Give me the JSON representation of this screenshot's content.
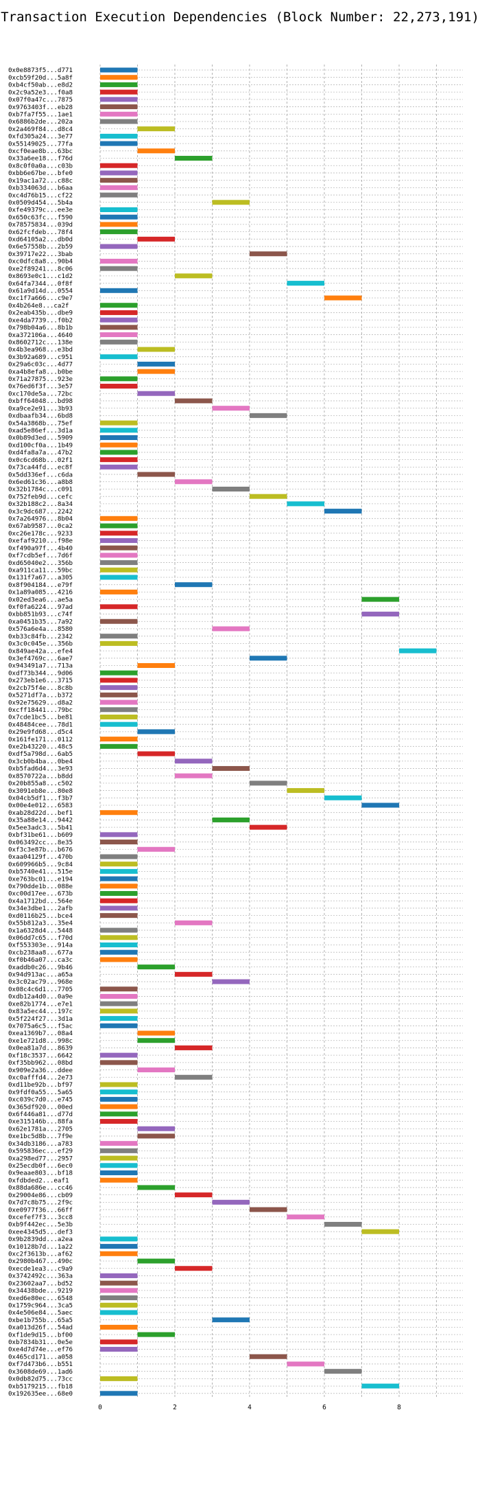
{
  "chart_data": {
    "type": "bar",
    "orientation": "horizontal",
    "title": "Transaction Execution Dependencies (Block Number: 22,273,191)",
    "xlabel": "",
    "ylabel": "",
    "xlim": [
      0,
      9
    ],
    "x_ticks": [
      0,
      2,
      4,
      6,
      8
    ],
    "grid": true,
    "bar_width": 1,
    "palette": [
      "#1f77b4",
      "#ff7f0e",
      "#2ca02c",
      "#d62728",
      "#9467bd",
      "#8c564b",
      "#e377c2",
      "#7f7f7f",
      "#bcbd22",
      "#17becf"
    ],
    "transactions": [
      "0x0e8873f5...d771",
      "0xcb59f20d...5a8f",
      "0xb4cf50ab...e8d2",
      "0x2c9a52e3...f0a8",
      "0x07f0a47c...7875",
      "0x9763403f...eb28",
      "0xb7fa7f55...1ae1",
      "0x6886b2de...202a",
      "0x2a469f84...d8c4",
      "0xfd305a24...3e77",
      "0x55149025...77fa",
      "0xcf0eae8b...63bc",
      "0x33a6ee18...f76d",
      "0x8c0f0a0a...c03b",
      "0xbb6e67be...bfe0",
      "0x19ac1a72...c88c",
      "0xb334063d...b6aa",
      "0xc4d76b15...cf22",
      "0x0509d454...5b4a",
      "0xfe49379c...ee3e",
      "0x650c63fc...f590",
      "0x78575834...039d",
      "0x62fcfdeb...78f4",
      "0xd64105a2...db0d",
      "0x6e57558b...2b59",
      "0x39717e22...3bab",
      "0xc0dfc8a8...90b4",
      "0xe2f89241...8c06",
      "0x8693e0c1...c1d2",
      "0x64fa7344...0f8f",
      "0x61a9d14d...0554",
      "0xc1f7a666...c9e7",
      "0x4b264e8...ca2f",
      "0x2eab435b...dbe9",
      "0xe4da7739...f0b2",
      "0x798b04a6...8b1b",
      "0xa372106a...4640",
      "0x8602712c...138e",
      "0x4b3ea968...e3bd",
      "0x3b92a689...c951",
      "0x29a6c03c...4d77",
      "0xa4b8efa8...b0be",
      "0x71a27875...923e",
      "0x76ed6f3f...3e57",
      "0xc170de5a...72bc",
      "0xbff64048...bd98",
      "0xa9ce2e91...3b93",
      "0xdbaafb34...6bd8",
      "0x54a3868b...75ef",
      "0xad5e86ef...3d1a",
      "0x0b89d3ed...5909",
      "0xd100cf0a...1b49",
      "0xd4fa8a7a...47b2",
      "0x0c6cd68b...02f1",
      "0x73ca44fd...ec8f",
      "0x5dd336ef...c6da",
      "0x6ed61c36...a8b8",
      "0x32b1784c...c091",
      "0x752feb9d...cefc",
      "0x32b188c2...8a34",
      "0x3c9dc687...2242",
      "0x7a264976...8b04",
      "0x67ab9587...0ca2",
      "0xc26e178c...9233",
      "0xefaf9210...f98e",
      "0xf490a97f...4b40",
      "0xf7cdb5ef...7d6f",
      "0xd65040e2...356b",
      "0xa911ca11...59bc",
      "0x131f7a67...a305",
      "0x8f904184...e79f",
      "0x1a89a085...4216",
      "0x02ed3ea6...ae5a",
      "0xf0fa6224...97ad",
      "0xbb851b93...c74f",
      "0xa0451b35...7a92",
      "0x576a6e4a...8580",
      "0xb33c84fb...2342",
      "0x3c0c045e...356b",
      "0x849ae42a...efe4",
      "0x3ef4769c...6ae7",
      "0x943491a7...713a",
      "0xdf73b344...9d06",
      "0x273eb1e6...3715",
      "0x2cb75f4e...8c8b",
      "0x5271df7a...b372",
      "0x92e75629...d8a2",
      "0xcff18441...79bc",
      "0x7cde1bc5...be81",
      "0x48484cee...78d1",
      "0x29e9fd68...d5c4",
      "0x161fe171...0112",
      "0xe2b43220...48c5",
      "0xdf5a798d...6ab5",
      "0x3cb0b4ba...0be4",
      "0xb5fad6d4...3e93",
      "0x8570722a...b8dd",
      "0x20b855a8...c502",
      "0x3091eb8e...80e8",
      "0x04cb5df1...f3b7",
      "0x00e4e012...6583",
      "0xab28d22d...bef1",
      "0x35a88e14...9442",
      "0x5ee3adc3...5b41",
      "0xbf31be61...b609",
      "0x063492cc...8e35",
      "0xf3c3e87b...b676",
      "0xaa04129f...470b",
      "0x609966b5...9c84",
      "0xb5740e41...515e",
      "0xe763bc01...e194",
      "0x790dde1b...088e",
      "0xc00d17ee...673b",
      "0x4a1712bd...564e",
      "0x34e3dbe1...2afb",
      "0xd0116b25...bce4",
      "0x55b812a3...35e4",
      "0x1a6328d4...5448",
      "0x06dd7c65...f70d",
      "0xf553303e...914a",
      "0xcb238aa8...677a",
      "0xf0b46a07...ca3c",
      "0xaddb0c26...9b46",
      "0x94d913ac...a65a",
      "0x3c02ac79...968e",
      "0x08c4c6d1...7705",
      "0xdb12a4d0...0a9e",
      "0xe82b1774...e7e1",
      "0x83a5ec44...197c",
      "0x5f224f27...3d1a",
      "0x7075a6c5...f5ac",
      "0xea1369b7...08a4",
      "0xe1e721d8...998c",
      "0x0ea81a7d...8639",
      "0xf18c3537...6642",
      "0xf35bb962...08bd",
      "0x909e2a36...ddee",
      "0xc0afffd4...2e73",
      "0xd11be92b...bf97",
      "0x9fdf0a55...5a65",
      "0xc039c7d0...e745",
      "0x365df920...00ed",
      "0x6f446a81...d77d",
      "0xe315146b...88fa",
      "0x62e1781a...2705",
      "0xe1bc5d8b...7f9e",
      "0x34db3186...a783",
      "0x595836ec...ef29",
      "0xa298ed77...2957",
      "0x25ecdb0f...6ec0",
      "0x9eaae803...bf18",
      "0xfdbded2...eaf1",
      "0x88da686e...cc46",
      "0x29004e86...cb09",
      "0x7d7c8b75...2f9c",
      "0xe0977f36...66ff",
      "0xcefef7f3...3cc8",
      "0xb9f442ec...5e3b",
      "0xee4345d5...def3",
      "0x9b2839dd...a2ea",
      "0x10128b7d...1a22",
      "0xc2f3613b...af62",
      "0x2980b467...490c",
      "0xecde1ea3...c9a9",
      "0x3742492c...363a",
      "0x23602aa7...bd52",
      "0x34438bde...9219",
      "0xed6e80ec...6548",
      "0x1759c964...3ca5",
      "0x4e506e84...5aec",
      "0xbe1b755b...65a5",
      "0xa013d26f...54ad",
      "0xf1de9d15...bf00",
      "0xb7834b31...0e5e",
      "0xe4d7d74e...ef76",
      "0x465cd171...a058",
      "0xf7d473b6...b551",
      "0x3608de69...1ad6",
      "0x0db82d75...73cc",
      "0xb5179215...fb18",
      "0x192635ee...68e0"
    ],
    "starts": [
      0,
      0,
      0,
      0,
      0,
      0,
      0,
      0,
      1,
      0,
      0,
      1,
      2,
      0,
      0,
      0,
      0,
      0,
      3,
      0,
      0,
      0,
      0,
      1,
      0,
      4,
      0,
      0,
      2,
      5,
      0,
      6,
      0,
      0,
      0,
      0,
      0,
      0,
      1,
      0,
      1,
      1,
      0,
      0,
      1,
      2,
      3,
      4,
      0,
      0,
      0,
      0,
      0,
      0,
      0,
      1,
      2,
      3,
      4,
      5,
      6,
      0,
      0,
      0,
      0,
      0,
      0,
      0,
      0,
      0,
      2,
      0,
      7,
      0,
      7,
      0,
      3,
      0,
      0,
      8,
      4,
      1,
      0,
      0,
      0,
      0,
      0,
      0,
      0,
      0,
      1,
      0,
      0,
      1,
      2,
      3,
      2,
      4,
      5,
      6,
      7,
      0,
      3,
      4,
      0,
      0,
      1,
      0,
      0,
      0,
      0,
      0,
      0,
      0,
      0,
      0,
      2,
      0,
      0,
      0,
      0,
      0,
      1,
      2,
      3,
      0,
      0,
      0,
      0,
      0,
      0,
      1,
      1,
      2,
      0,
      0,
      1,
      2,
      0,
      0,
      0,
      0,
      0,
      0,
      1,
      1,
      0,
      0,
      0,
      0,
      0,
      0,
      1,
      2,
      3,
      4,
      5,
      6,
      7,
      0,
      0,
      0,
      1,
      2,
      0,
      0,
      0,
      0,
      0,
      0,
      3,
      0,
      1,
      0,
      0,
      4,
      5,
      6,
      0,
      7,
      0
    ],
    "ends": [
      1,
      1,
      1,
      1,
      1,
      1,
      1,
      1,
      2,
      1,
      1,
      2,
      3,
      1,
      1,
      1,
      1,
      1,
      4,
      1,
      1,
      1,
      1,
      2,
      1,
      5,
      1,
      1,
      3,
      6,
      1,
      7,
      1,
      1,
      1,
      1,
      1,
      1,
      2,
      1,
      2,
      2,
      1,
      1,
      2,
      3,
      4,
      5,
      1,
      1,
      1,
      1,
      1,
      1,
      1,
      2,
      3,
      4,
      5,
      6,
      7,
      1,
      1,
      1,
      1,
      1,
      1,
      1,
      1,
      1,
      3,
      1,
      8,
      1,
      8,
      1,
      4,
      1,
      1,
      9,
      5,
      2,
      1,
      1,
      1,
      1,
      1,
      1,
      1,
      1,
      2,
      1,
      1,
      2,
      3,
      4,
      3,
      5,
      6,
      7,
      8,
      1,
      4,
      5,
      1,
      1,
      2,
      1,
      1,
      1,
      1,
      1,
      1,
      1,
      1,
      1,
      3,
      1,
      1,
      1,
      1,
      1,
      2,
      3,
      4,
      1,
      1,
      1,
      1,
      1,
      1,
      2,
      2,
      3,
      1,
      1,
      2,
      3,
      1,
      1,
      1,
      1,
      1,
      1,
      2,
      2,
      1,
      1,
      1,
      1,
      1,
      1,
      2,
      3,
      4,
      5,
      6,
      7,
      8,
      1,
      1,
      1,
      2,
      3,
      1,
      1,
      1,
      1,
      1,
      1,
      4,
      1,
      2,
      1,
      1,
      5,
      6,
      7,
      1,
      8,
      1
    ]
  }
}
